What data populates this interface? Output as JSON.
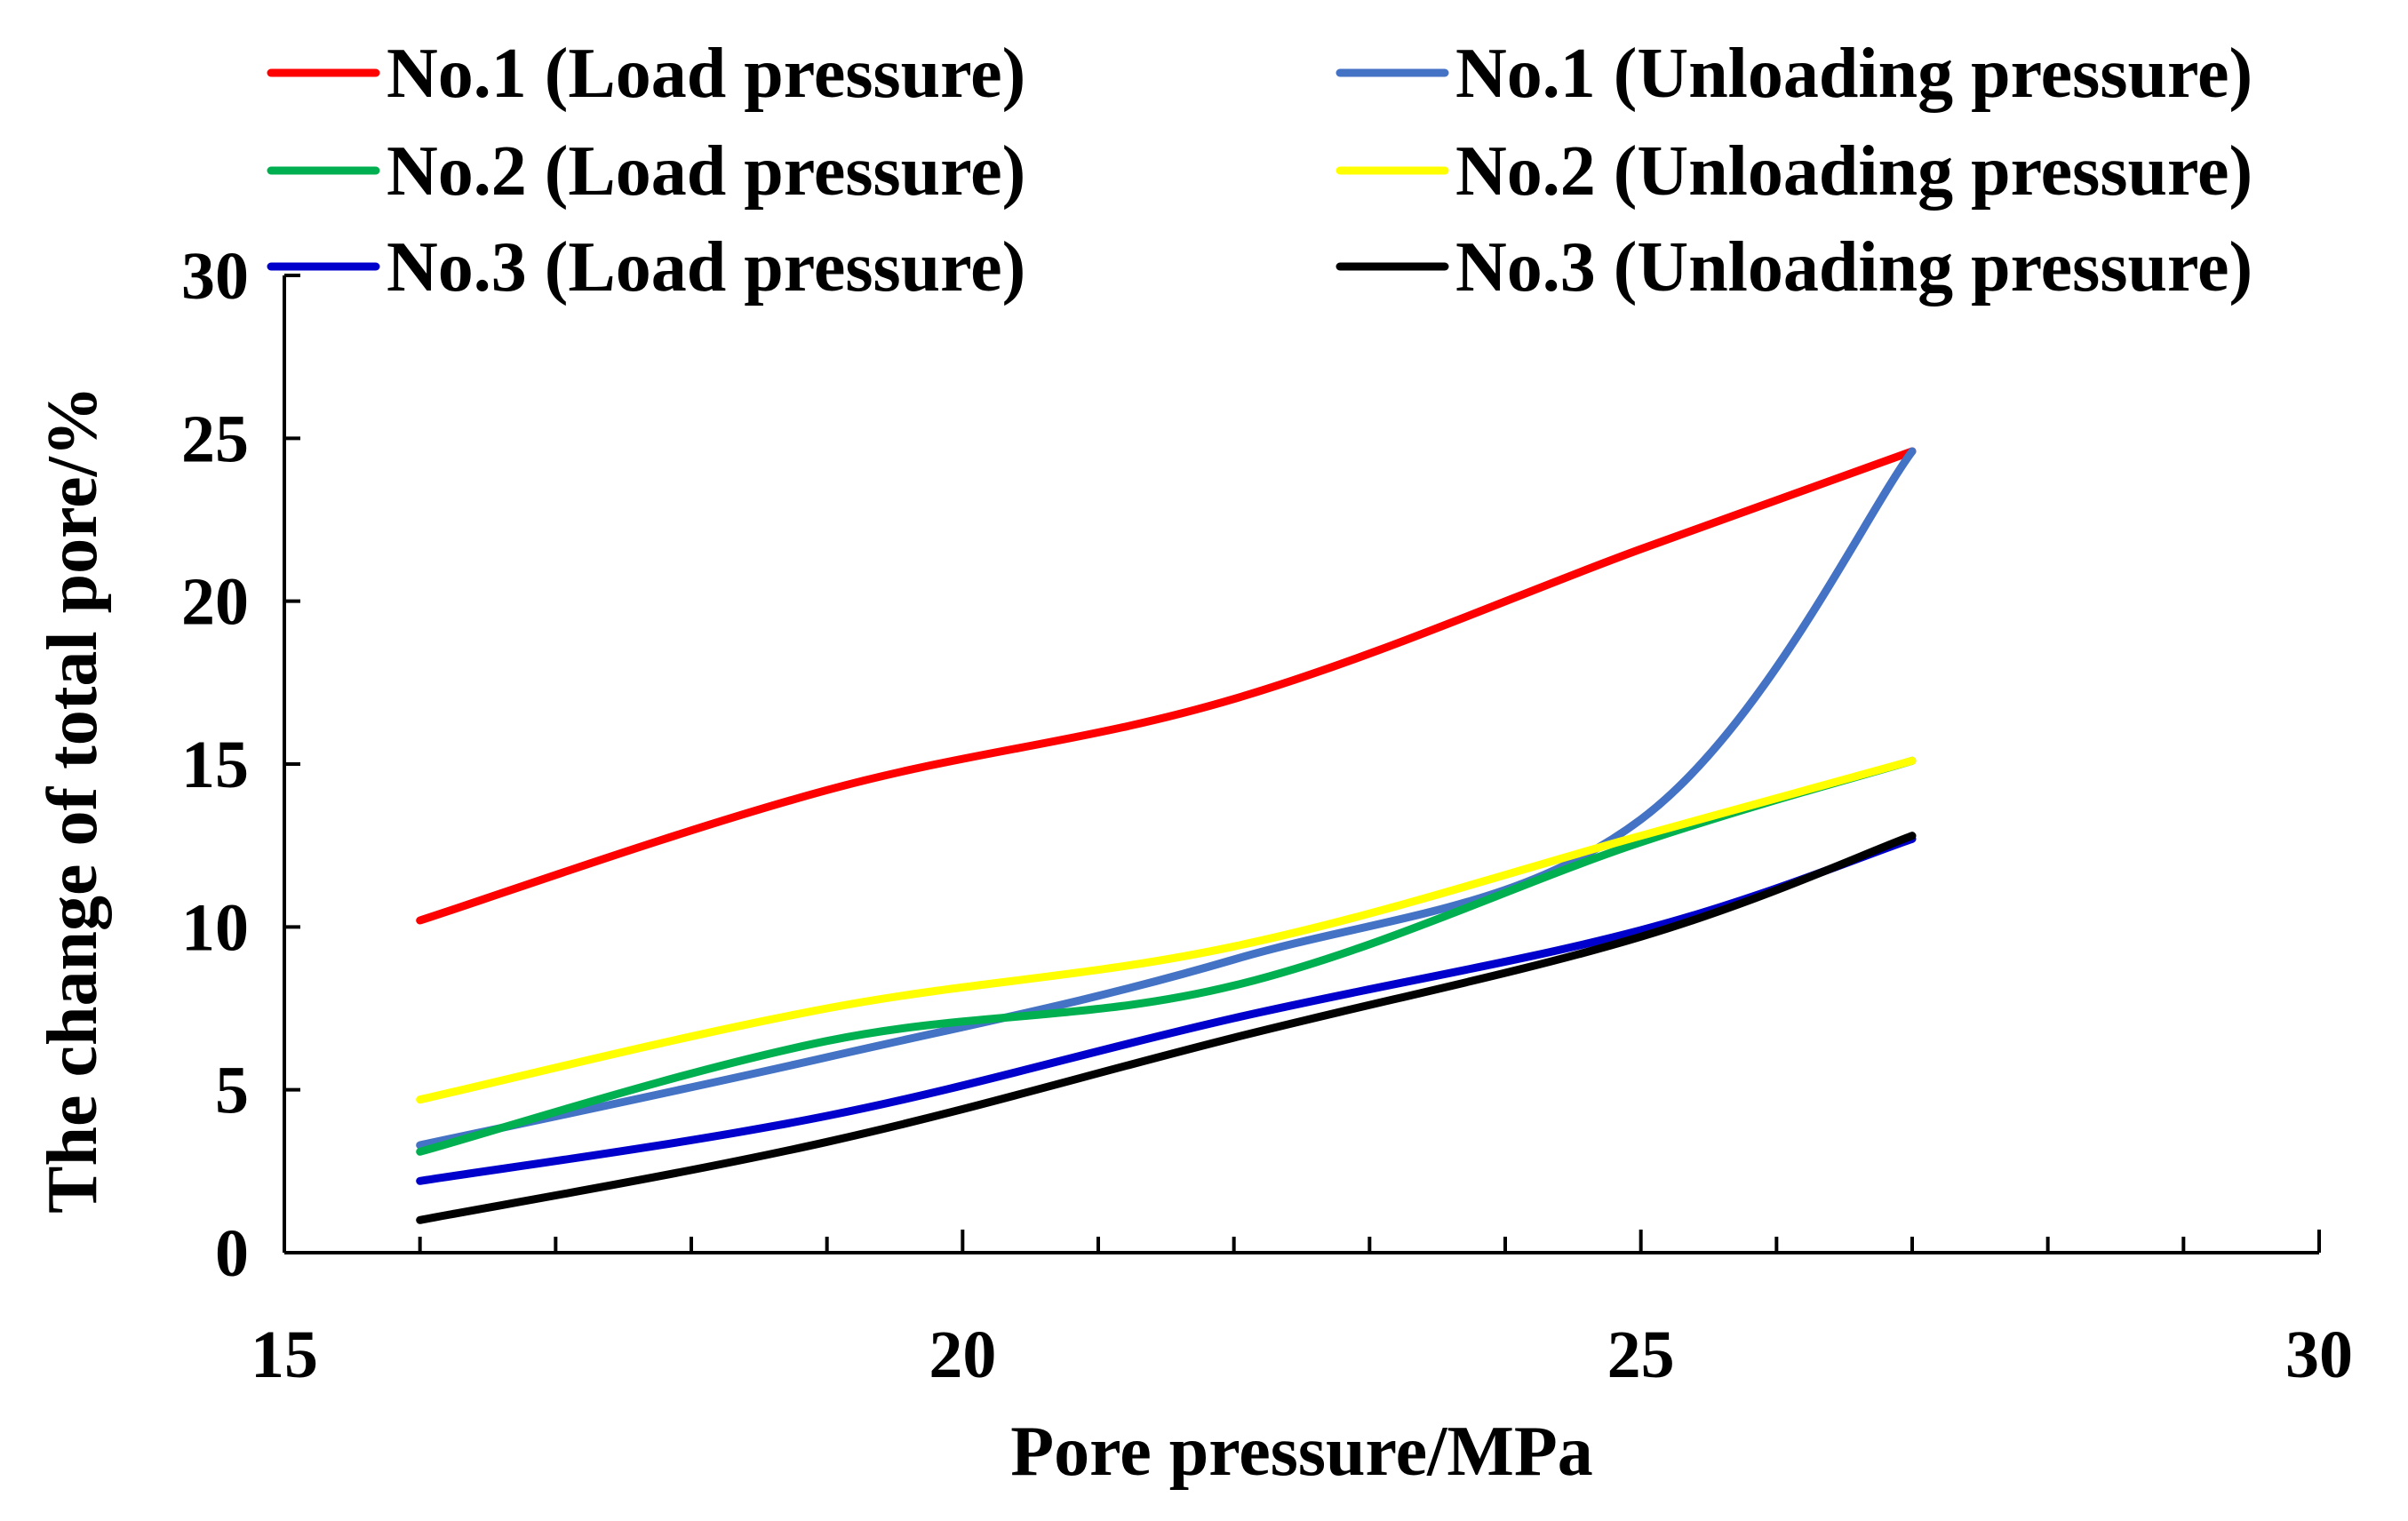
{
  "chart_data": {
    "type": "line",
    "xlabel": "Pore pressure/MPa",
    "ylabel": "The change of total pore/%",
    "xlim": [
      15,
      30
    ],
    "ylim": [
      0,
      30
    ],
    "xticks": [
      15,
      20,
      25,
      30
    ],
    "yticks": [
      0,
      5,
      10,
      15,
      20,
      25,
      30
    ],
    "x_minor_step": 1,
    "grid": false,
    "legend_position": "top",
    "series": [
      {
        "name": "No.1 (Load pressure)",
        "color": "#ff0000",
        "x": [
          16,
          19,
          22,
          25,
          27
        ],
        "y": [
          10.2,
          14.2,
          17,
          21.6,
          24.6
        ]
      },
      {
        "name": "No.1 (Unloading pressure)",
        "color": "#4472c4",
        "x": [
          16,
          19,
          22,
          25,
          27
        ],
        "y": [
          3.3,
          6,
          9,
          13.3,
          24.6
        ]
      },
      {
        "name": "No.2 (Load pressure)",
        "color": "#00b050",
        "x": [
          16,
          19,
          22,
          25,
          27
        ],
        "y": [
          3.1,
          6.5,
          8.2,
          12.6,
          15.1
        ]
      },
      {
        "name": "No.2 (Unloading pressure)",
        "color": "#ffff00",
        "x": [
          16,
          19,
          22,
          25,
          27
        ],
        "y": [
          4.7,
          7.5,
          9.4,
          12.8,
          15.1
        ]
      },
      {
        "name": "No.3 (Load pressure)",
        "color": "#0000cc",
        "x": [
          16,
          19,
          22,
          25,
          27
        ],
        "y": [
          2.2,
          4.2,
          7.2,
          9.9,
          12.7
        ]
      },
      {
        "name": "No.3 (Unloading pressure)",
        "color": "#000000",
        "x": [
          16,
          19,
          22,
          25,
          27
        ],
        "y": [
          1.0,
          3.4,
          6.6,
          9.7,
          12.8
        ]
      }
    ]
  }
}
